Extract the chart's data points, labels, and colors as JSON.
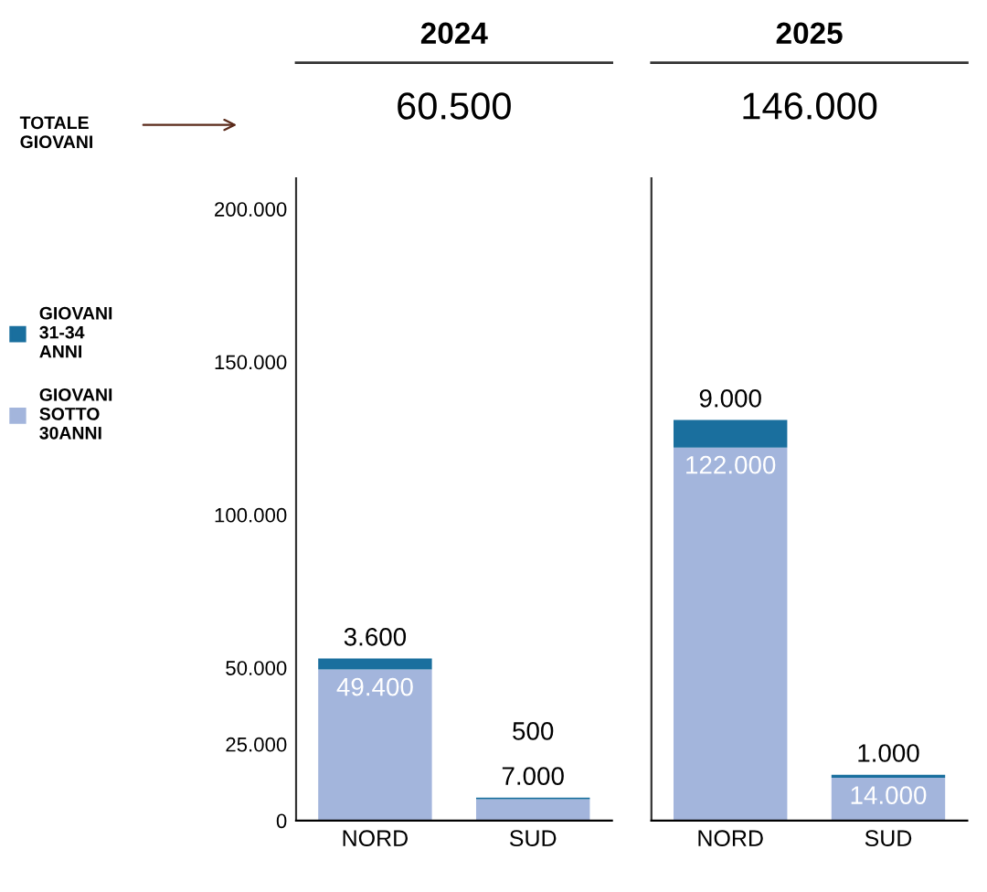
{
  "chart_data": [
    {
      "type": "bar",
      "title": "2024",
      "stacked": true,
      "categories": [
        "NORD",
        "SUD"
      ],
      "series": [
        {
          "name": "GIOVANI SOTTO 30ANNI",
          "color": "#a3b5dc",
          "values": [
            49400,
            7000
          ],
          "value_labels": [
            "49.400",
            "7.000"
          ]
        },
        {
          "name": "GIOVANI 31-34 ANNI",
          "color": "#1a6f9e",
          "values": [
            3600,
            500
          ],
          "value_labels": [
            "3.600",
            "500"
          ]
        }
      ],
      "ylim": [
        0,
        210000
      ],
      "yticks": [
        0,
        {
          "value": 25000,
          "label": "25.000"
        },
        {
          "value": 50000,
          "label": "50.000"
        },
        {
          "value": 100000,
          "label": "100.000"
        },
        {
          "value": 150000,
          "label": "150.000"
        },
        {
          "value": 200000,
          "label": "200.000"
        }
      ],
      "annotations": [
        "TOTALE GIOVANI",
        "60.500"
      ],
      "legend": "left",
      "grid": false
    },
    {
      "type": "bar",
      "title": "2025",
      "stacked": true,
      "categories": [
        "NORD",
        "SUD"
      ],
      "series": [
        {
          "color": "#a3b5dc",
          "values": [
            122000,
            14000
          ],
          "value_labels": [
            "122.000",
            "14.000"
          ]
        },
        {
          "color": "#1a6f9e",
          "values": [
            9000,
            1000
          ],
          "value_labels": [
            "9.000",
            "1.000"
          ]
        }
      ],
      "ylim": [
        0,
        210000
      ],
      "tick_labels": "x",
      "annotations": [
        "146.000"
      ],
      "legend": false,
      "grid": false
    }
  ]
}
